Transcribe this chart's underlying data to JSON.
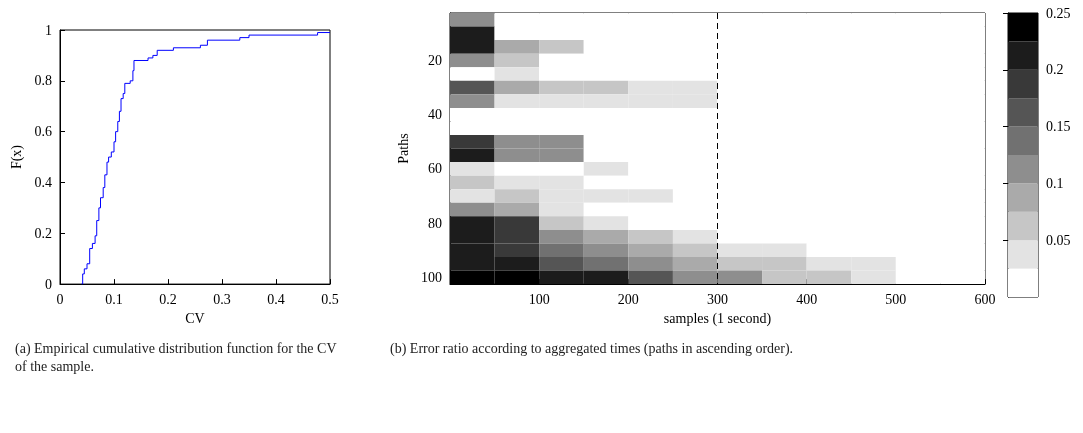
{
  "chart_data": [
    {
      "type": "step",
      "xlabel": "CV",
      "ylabel": "F(x)",
      "xlim": [
        0,
        0.5
      ],
      "ylim": [
        0,
        1
      ],
      "xticks": [
        0,
        0.1,
        0.2,
        0.3,
        0.4,
        0.5
      ],
      "yticks": [
        0,
        0.2,
        0.4,
        0.6,
        0.8,
        1
      ],
      "grid": false,
      "annotations": [
        "(a) Empirical cumulative distribution function for the CV of the sample."
      ],
      "series": [
        {
          "color": "#0000ff",
          "x": [
            0.04,
            0.042,
            0.045,
            0.05,
            0.055,
            0.06,
            0.065,
            0.068,
            0.072,
            0.075,
            0.08,
            0.083,
            0.087,
            0.09,
            0.095,
            0.1,
            0.103,
            0.107,
            0.11,
            0.113,
            0.117,
            0.12,
            0.13,
            0.135,
            0.137,
            0.163,
            0.172,
            0.18,
            0.21,
            0.26,
            0.273,
            0.333,
            0.35,
            0.477,
            0.5
          ],
          "values": [
            0,
            0.04,
            0.06,
            0.08,
            0.14,
            0.16,
            0.19,
            0.25,
            0.3,
            0.34,
            0.38,
            0.43,
            0.48,
            0.5,
            0.52,
            0.56,
            0.6,
            0.64,
            0.68,
            0.73,
            0.75,
            0.79,
            0.8,
            0.84,
            0.88,
            0.89,
            0.9,
            0.92,
            0.93,
            0.94,
            0.96,
            0.97,
            0.98,
            0.99,
            0.99
          ]
        }
      ]
    },
    {
      "type": "heatmap",
      "xlabel": "samples (1 second)",
      "ylabel": "Paths",
      "xlim": [
        0,
        600
      ],
      "xticks": [
        100,
        200,
        300,
        400,
        500,
        600
      ],
      "clim": [
        0,
        0.25
      ],
      "cticks": [
        0.05,
        0.1,
        0.15,
        0.2,
        0.25
      ],
      "annotations": [
        "(b) Error ratio according to aggregated times (paths in ascending order)."
      ],
      "ref_lines": [
        {
          "axis": "x",
          "value": 300,
          "line_style": "dashed",
          "color": "#000000"
        }
      ],
      "x": [
        25,
        75,
        125,
        175,
        225,
        275,
        325,
        375,
        425,
        475,
        525,
        575
      ],
      "y_categories": [
        null,
        null,
        null,
        "20",
        null,
        null,
        null,
        "40",
        null,
        null,
        null,
        "60",
        null,
        null,
        null,
        "80",
        null,
        null,
        null,
        "100"
      ],
      "cells": [
        [
          0.12,
          0,
          0,
          0.02,
          0,
          0,
          0,
          0,
          0,
          0,
          0,
          0
        ],
        [
          0.2,
          0.01,
          0,
          0,
          0,
          0,
          0,
          0,
          0,
          0,
          0,
          0
        ],
        [
          0.2,
          0.08,
          0.05,
          0,
          0,
          0,
          0,
          0,
          0,
          0,
          0,
          0
        ],
        [
          0.1,
          0.05,
          0.02,
          0,
          0,
          0,
          0,
          0,
          0,
          0,
          0,
          0
        ],
        [
          0.02,
          0.03,
          0.02,
          0,
          0,
          0,
          0,
          0,
          0,
          0,
          0,
          0
        ],
        [
          0.15,
          0.08,
          0.06,
          0.05,
          0.04,
          0.04,
          0,
          0,
          0,
          0,
          0,
          0
        ],
        [
          0.12,
          0.04,
          0.03,
          0.04,
          0.03,
          0.03,
          0,
          0,
          0,
          0,
          0,
          0
        ],
        [
          0,
          0,
          0.01,
          0,
          0.01,
          0,
          0,
          0,
          0,
          0,
          0,
          0
        ],
        [
          0,
          0,
          0,
          0,
          0,
          0,
          0,
          0,
          0,
          0,
          0,
          0
        ],
        [
          0.18,
          0.1,
          0.12,
          0,
          0,
          0,
          0,
          0,
          0.01,
          0,
          0,
          0.01
        ],
        [
          0.2,
          0.1,
          0.12,
          0,
          0,
          0,
          0,
          0,
          0.01,
          0,
          0,
          0.01
        ],
        [
          0.03,
          0.01,
          0.02,
          0.03,
          0.02,
          0,
          0,
          0,
          0,
          0,
          0,
          0
        ],
        [
          0.05,
          0.04,
          0.03,
          0.02,
          0.01,
          0,
          0,
          0,
          0,
          0,
          0,
          0
        ],
        [
          0.04,
          0.06,
          0.03,
          0.03,
          0.03,
          0.02,
          0,
          0,
          0,
          0,
          0,
          0
        ],
        [
          0.12,
          0.08,
          0.03,
          0,
          0,
          0,
          0,
          0,
          0,
          0,
          0,
          0
        ],
        [
          0.22,
          0.18,
          0.06,
          0.03,
          0,
          0,
          0,
          0,
          0,
          0,
          0,
          0
        ],
        [
          0.22,
          0.18,
          0.12,
          0.08,
          0.05,
          0.03,
          0,
          0,
          0,
          0,
          0,
          0
        ],
        [
          0.22,
          0.18,
          0.14,
          0.1,
          0.08,
          0.05,
          0.04,
          0.03,
          0.02,
          0.01,
          0,
          0
        ],
        [
          0.22,
          0.2,
          0.16,
          0.13,
          0.1,
          0.08,
          0.06,
          0.05,
          0.04,
          0.03,
          0.02,
          0.01
        ],
        [
          0.25,
          0.24,
          0.22,
          0.2,
          0.15,
          0.12,
          0.1,
          0.07,
          0.05,
          0.03,
          0.02,
          0.01
        ]
      ]
    }
  ]
}
